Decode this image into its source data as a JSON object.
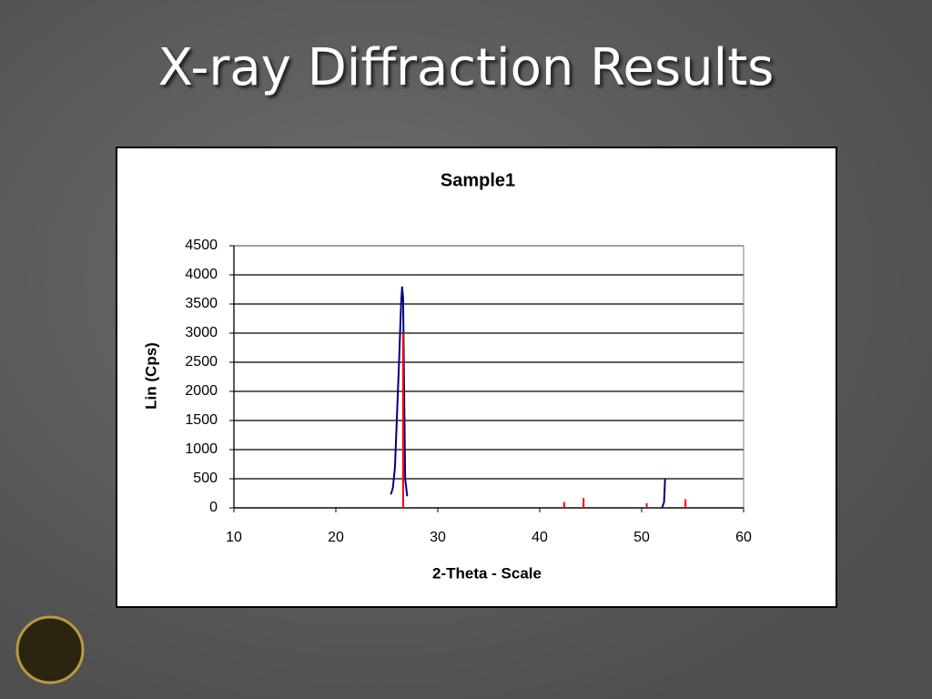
{
  "title": "X-ray Diffraction Results",
  "chart_data": {
    "type": "line",
    "title": "Sample1",
    "x_label": "2-Theta - Scale",
    "y_label": "Lin (Cps)",
    "xlim": [
      10,
      60
    ],
    "xticks": [
      10,
      20,
      30,
      40,
      50,
      60
    ],
    "ylim": [
      0,
      4500
    ],
    "yticks": [
      0,
      500,
      1000,
      1500,
      2000,
      2500,
      3000,
      3500,
      4000,
      4500
    ],
    "grid": true,
    "series": [
      {
        "type": "line",
        "color": "#000080",
        "x": [
          25.4,
          25.6,
          25.8,
          26.0,
          26.2,
          26.4,
          26.5,
          26.6,
          26.7,
          26.8,
          27.0,
          40,
          52.0,
          52.2,
          52.3
        ],
        "values": [
          230,
          350,
          700,
          1600,
          2500,
          3500,
          3800,
          3600,
          2000,
          500,
          200,
          null,
          0,
          100,
          500
        ]
      },
      {
        "type": "stick",
        "color": "#ff0000",
        "x": [
          26.6,
          42.4,
          44.3,
          50.5,
          54.3
        ],
        "values": [
          3000,
          100,
          170,
          80,
          150
        ]
      }
    ]
  }
}
